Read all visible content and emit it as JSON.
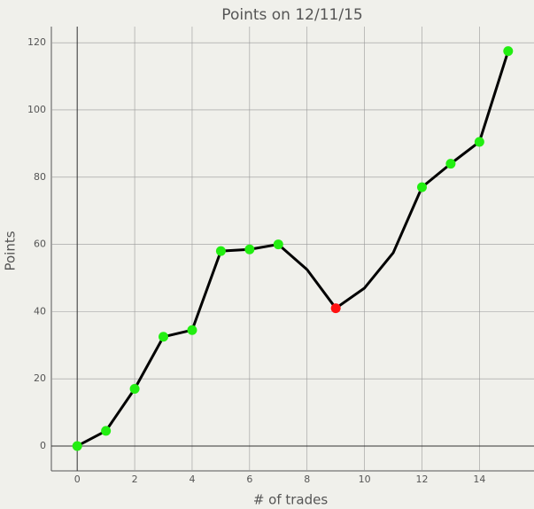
{
  "chart_data": {
    "type": "line",
    "title": "Points on 12/11/15",
    "x_label": "# of trades",
    "y_label": "Points",
    "x": [
      0,
      1,
      2,
      3,
      4,
      5,
      6,
      7,
      8,
      9,
      10,
      11,
      12,
      13,
      14,
      15
    ],
    "series": [
      {
        "color": "#000000",
        "values": [
          0,
          4.5,
          17,
          32.5,
          34.5,
          58,
          58.5,
          60,
          52.5,
          41,
          47,
          57.5,
          77,
          84,
          90.5,
          117.5
        ],
        "marker_colors": [
          "#22ee11",
          "#22ee11",
          "#22ee11",
          "#22ee11",
          "#22ee11",
          "#22ee11",
          "#22ee11",
          "#22ee11",
          null,
          "#ff1111",
          null,
          null,
          "#22ee11",
          "#22ee11",
          "#22ee11",
          "#22ee11"
        ]
      }
    ],
    "xlim": [
      -0.9,
      15.9
    ],
    "ylim": [
      -7.4,
      124.8
    ],
    "xticks": [
      0,
      2,
      4,
      6,
      8,
      10,
      12,
      14
    ],
    "yticks": [
      0,
      20,
      40,
      60,
      80,
      100,
      120
    ],
    "grid": true
  }
}
